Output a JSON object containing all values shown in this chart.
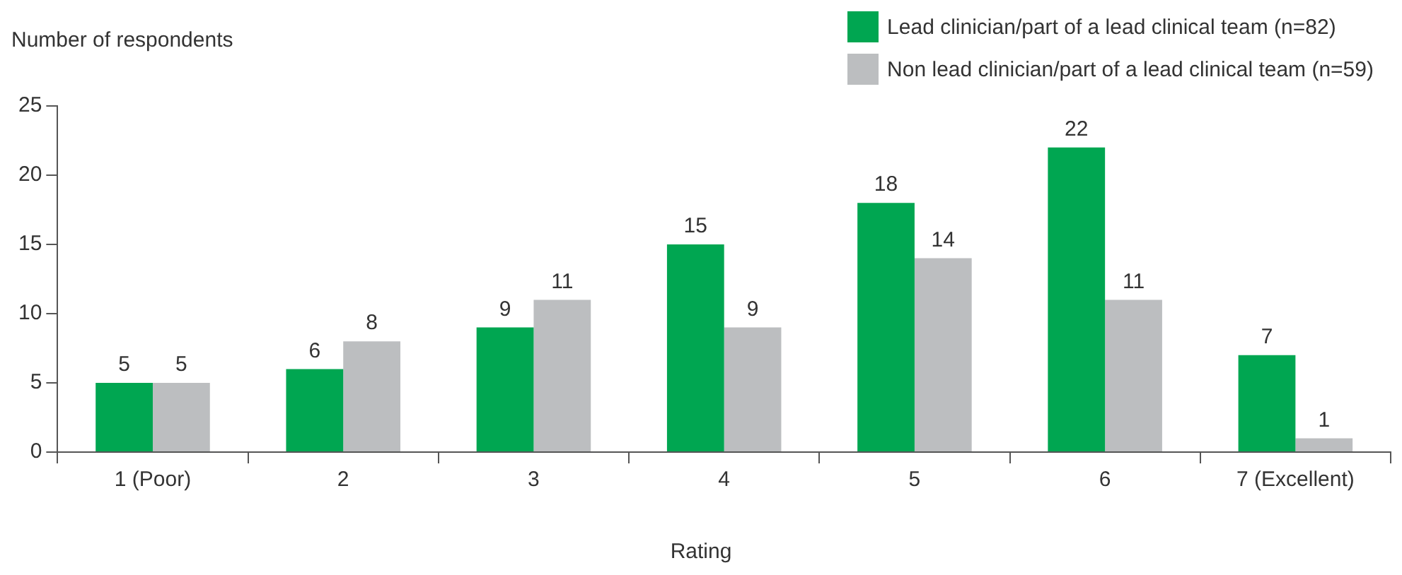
{
  "chart_data": {
    "type": "bar",
    "xlabel": "Rating",
    "ylabel": "Number of respondents",
    "categories": [
      "1 (Poor)",
      "2",
      "3",
      "4",
      "5",
      "6",
      "7 (Excellent)"
    ],
    "series": [
      {
        "name": "Lead clinician/part of a lead clinical team (n=82)",
        "color": "#00a651",
        "values": [
          5,
          6,
          9,
          15,
          18,
          22,
          7
        ]
      },
      {
        "name": "Non lead clinician/part of a lead clinical team (n=59)",
        "color": "#bcbec0",
        "values": [
          5,
          8,
          11,
          9,
          14,
          11,
          1
        ]
      }
    ],
    "ylim": [
      0,
      25
    ],
    "yticks": [
      0,
      5,
      10,
      15,
      20,
      25
    ],
    "grid": false,
    "legend": "top right",
    "data_labels": true
  }
}
